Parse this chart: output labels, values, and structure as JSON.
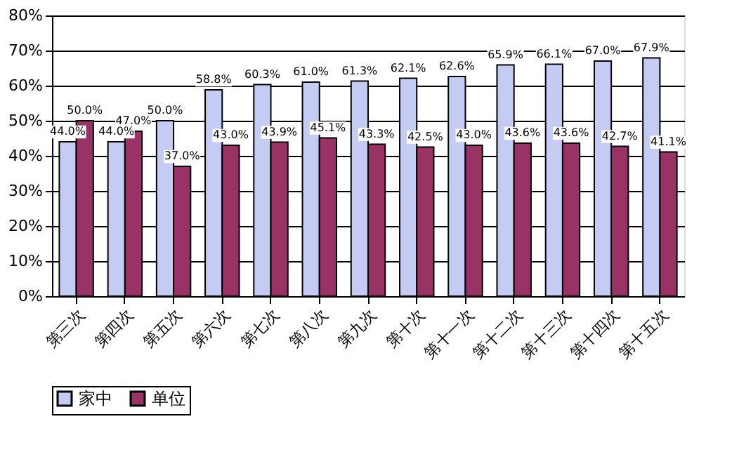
{
  "chart_data": {
    "type": "bar",
    "categories": [
      "第三次",
      "第四次",
      "第五次",
      "第六次",
      "第七次",
      "第八次",
      "第九次",
      "第十次",
      "第十一次",
      "第十二次",
      "第十三次",
      "第十四次",
      "第十五次"
    ],
    "series": [
      {
        "name": "家中",
        "color": "#c4ccf4",
        "values": [
          44.0,
          44.0,
          50.0,
          58.8,
          60.3,
          61.0,
          61.3,
          62.1,
          62.6,
          65.9,
          66.1,
          67.0,
          67.9
        ],
        "value_labels": [
          "44.0%",
          "44.0%",
          "50.0%",
          "58.8%",
          "60.3%",
          "61.0%",
          "61.3%",
          "62.1%",
          "62.6%",
          "65.9%",
          "66.1%",
          "67.0%",
          "67.9%"
        ]
      },
      {
        "name": "单位",
        "color": "#993366",
        "values": [
          50.0,
          47.0,
          37.0,
          43.0,
          43.9,
          45.1,
          43.3,
          42.5,
          43.0,
          43.6,
          43.6,
          42.7,
          41.1
        ],
        "value_labels": [
          "50.0%",
          "47.0%",
          "37.0%",
          "43.0%",
          "43.9%",
          "45.1%",
          "43.3%",
          "42.5%",
          "43.0%",
          "43.6%",
          "43.6%",
          "42.7%",
          "41.1%"
        ]
      }
    ],
    "ylim": [
      0,
      80
    ],
    "yticks": [
      {
        "value": 0,
        "label": "0%"
      },
      {
        "value": 10,
        "label": "10%"
      },
      {
        "value": 20,
        "label": "20%"
      },
      {
        "value": 30,
        "label": "30%"
      },
      {
        "value": 40,
        "label": "40%"
      },
      {
        "value": 50,
        "label": "50%"
      },
      {
        "value": 60,
        "label": "60%"
      },
      {
        "value": 70,
        "label": "70%"
      },
      {
        "value": 80,
        "label": "80%"
      }
    ],
    "grid": "y",
    "legend": "bottom"
  }
}
